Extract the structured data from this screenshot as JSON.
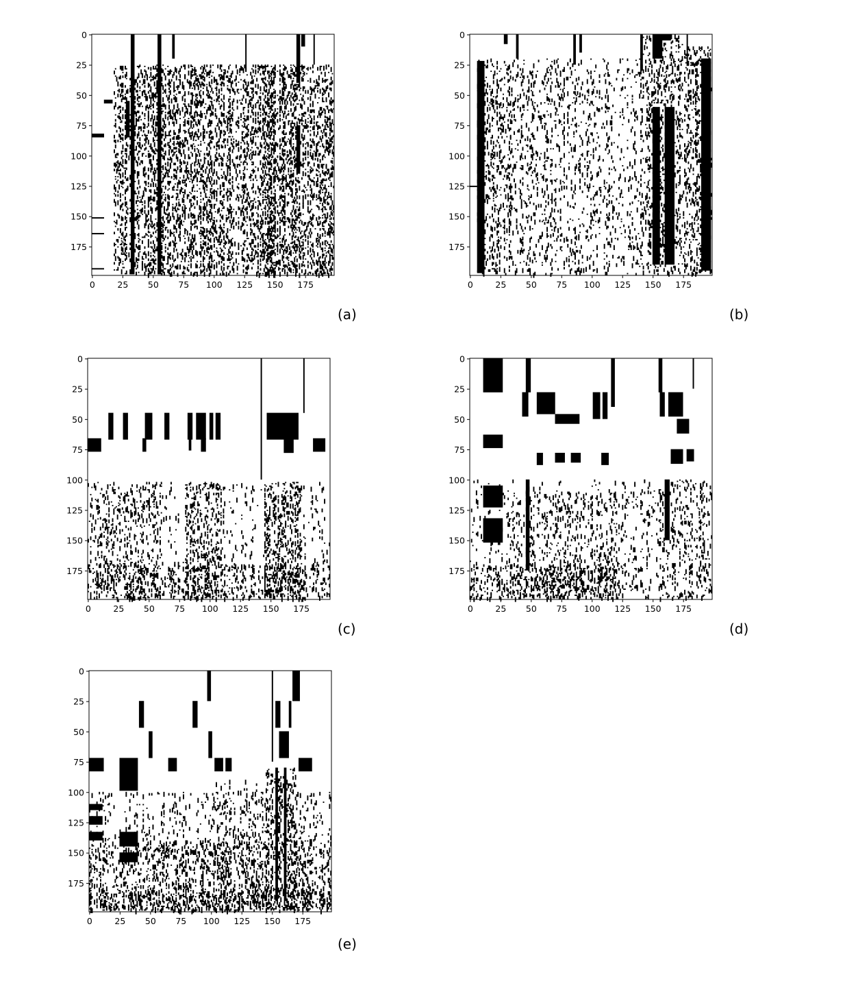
{
  "figure": {
    "panel_labels": [
      "(a)",
      "(b)",
      "(c)",
      "(d)",
      "(e)"
    ]
  },
  "chart_data": [
    {
      "type": "heatmap",
      "label": "(a)",
      "colormap": "binary",
      "colors": {
        "filled": "#000000",
        "empty": "#ffffff"
      },
      "rows": 199,
      "cols": 199,
      "xlim": [
        0,
        199
      ],
      "ylim": [
        199,
        0
      ],
      "xticks": [
        0,
        25,
        50,
        75,
        100,
        125,
        150,
        175
      ],
      "yticks": [
        0,
        25,
        50,
        75,
        100,
        125,
        150,
        175
      ],
      "grid": false,
      "seed": 11,
      "blocks": [
        [
          0,
          0,
          0,
          0
        ],
        [
          32,
          0,
          3,
          198
        ],
        [
          54,
          0,
          3,
          198
        ],
        [
          66,
          0,
          2,
          20
        ],
        [
          126,
          0,
          1,
          30
        ],
        [
          168,
          0,
          3,
          40
        ],
        [
          172,
          0,
          3,
          10
        ],
        [
          182,
          0,
          1,
          25
        ],
        [
          10,
          54,
          7,
          3
        ],
        [
          0,
          82,
          10,
          3
        ],
        [
          0,
          151,
          10,
          1
        ],
        [
          0,
          164,
          10,
          1
        ],
        [
          0,
          193,
          10,
          1
        ],
        [
          28,
          55,
          3,
          30
        ],
        [
          168,
          75,
          3,
          40
        ]
      ],
      "density": [
        [
          18,
          25,
          198,
          198,
          0.42
        ],
        [
          35,
          25,
          75,
          198,
          0.12
        ],
        [
          75,
          25,
          112,
          198,
          0.18
        ],
        [
          112,
          25,
          140,
          198,
          0.06
        ],
        [
          140,
          25,
          165,
          198,
          0.28
        ],
        [
          165,
          25,
          199,
          198,
          0.16
        ]
      ]
    },
    {
      "type": "heatmap",
      "label": "(b)",
      "colormap": "binary",
      "colors": {
        "filled": "#000000",
        "empty": "#ffffff"
      },
      "rows": 199,
      "cols": 199,
      "xlim": [
        0,
        199
      ],
      "ylim": [
        199,
        0
      ],
      "xticks": [
        0,
        25,
        50,
        75,
        100,
        125,
        150,
        175
      ],
      "yticks": [
        0,
        25,
        50,
        75,
        100,
        125,
        150,
        175
      ],
      "grid": false,
      "seed": 23,
      "blocks": [
        [
          28,
          0,
          3,
          8
        ],
        [
          38,
          0,
          2,
          20
        ],
        [
          85,
          0,
          2,
          25
        ],
        [
          90,
          0,
          2,
          15
        ],
        [
          140,
          0,
          2,
          30
        ],
        [
          150,
          0,
          8,
          20
        ],
        [
          155,
          0,
          10,
          5
        ],
        [
          178,
          0,
          1,
          25
        ],
        [
          6,
          22,
          6,
          175
        ],
        [
          0,
          125,
          6,
          1
        ],
        [
          190,
          20,
          8,
          175
        ],
        [
          150,
          60,
          6,
          130
        ],
        [
          160,
          60,
          8,
          130
        ]
      ],
      "density": [
        [
          6,
          20,
          198,
          198,
          0.1
        ],
        [
          6,
          20,
          35,
          198,
          0.3
        ],
        [
          35,
          20,
          100,
          198,
          0.12
        ],
        [
          100,
          20,
          140,
          198,
          0.08
        ],
        [
          140,
          0,
          175,
          198,
          0.3
        ],
        [
          175,
          10,
          199,
          198,
          0.32
        ]
      ]
    },
    {
      "type": "heatmap",
      "label": "(c)",
      "colormap": "binary",
      "colors": {
        "filled": "#000000",
        "empty": "#ffffff"
      },
      "rows": 199,
      "cols": 199,
      "xlim": [
        0,
        199
      ],
      "ylim": [
        199,
        0
      ],
      "xticks": [
        0,
        25,
        50,
        75,
        100,
        125,
        150,
        175
      ],
      "yticks": [
        0,
        25,
        50,
        75,
        100,
        125,
        150,
        175
      ],
      "grid": false,
      "seed": 37,
      "blocks": [
        [
          142,
          0,
          1,
          100
        ],
        [
          177,
          0,
          1,
          45
        ],
        [
          0,
          66,
          11,
          11
        ],
        [
          17,
          45,
          4,
          22
        ],
        [
          29,
          45,
          4,
          22
        ],
        [
          47,
          45,
          6,
          22
        ],
        [
          63,
          45,
          4,
          22
        ],
        [
          82,
          45,
          4,
          22
        ],
        [
          89,
          45,
          8,
          22
        ],
        [
          100,
          45,
          3,
          22
        ],
        [
          105,
          45,
          4,
          22
        ],
        [
          147,
          45,
          26,
          22
        ],
        [
          161,
          67,
          8,
          11
        ],
        [
          185,
          66,
          10,
          11
        ],
        [
          45,
          66,
          3,
          11
        ],
        [
          93,
          66,
          4,
          11
        ],
        [
          83,
          66,
          2,
          10
        ]
      ],
      "density": [
        [
          0,
          102,
          199,
          198,
          0.14
        ],
        [
          10,
          102,
          60,
          198,
          0.22
        ],
        [
          80,
          102,
          112,
          198,
          0.34
        ],
        [
          145,
          102,
          175,
          198,
          0.48
        ],
        [
          0,
          170,
          199,
          198,
          0.3
        ]
      ]
    },
    {
      "type": "heatmap",
      "label": "(d)",
      "colormap": "binary",
      "colors": {
        "filled": "#000000",
        "empty": "#ffffff"
      },
      "rows": 199,
      "cols": 199,
      "xlim": [
        0,
        199
      ],
      "ylim": [
        199,
        0
      ],
      "xticks": [
        0,
        25,
        50,
        75,
        100,
        125,
        150,
        175
      ],
      "yticks": [
        0,
        25,
        50,
        75,
        100,
        125,
        150,
        175
      ],
      "grid": false,
      "seed": 51,
      "blocks": [
        [
          11,
          0,
          16,
          28
        ],
        [
          46,
          0,
          4,
          28
        ],
        [
          116,
          0,
          3,
          40
        ],
        [
          155,
          0,
          3,
          28
        ],
        [
          183,
          0,
          1,
          25
        ],
        [
          43,
          28,
          5,
          20
        ],
        [
          55,
          28,
          15,
          18
        ],
        [
          101,
          28,
          6,
          22
        ],
        [
          109,
          28,
          4,
          22
        ],
        [
          163,
          28,
          12,
          20
        ],
        [
          156,
          28,
          4,
          20
        ],
        [
          70,
          46,
          20,
          8
        ],
        [
          11,
          63,
          16,
          11
        ],
        [
          170,
          50,
          10,
          12
        ],
        [
          55,
          78,
          5,
          10
        ],
        [
          70,
          78,
          8,
          8
        ],
        [
          83,
          78,
          8,
          8
        ],
        [
          108,
          78,
          6,
          10
        ],
        [
          165,
          75,
          10,
          12
        ],
        [
          178,
          75,
          6,
          10
        ],
        [
          11,
          105,
          16,
          18
        ],
        [
          11,
          132,
          16,
          20
        ],
        [
          46,
          100,
          3,
          75
        ],
        [
          160,
          100,
          4,
          50
        ]
      ],
      "density": [
        [
          0,
          100,
          199,
          198,
          0.1
        ],
        [
          30,
          110,
          130,
          198,
          0.2
        ],
        [
          0,
          170,
          120,
          198,
          0.35
        ],
        [
          155,
          100,
          199,
          198,
          0.28
        ],
        [
          130,
          100,
          155,
          198,
          0.06
        ]
      ]
    },
    {
      "type": "heatmap",
      "label": "(e)",
      "colormap": "binary",
      "colors": {
        "filled": "#000000",
        "empty": "#ffffff"
      },
      "rows": 199,
      "cols": 199,
      "xlim": [
        0,
        199
      ],
      "ylim": [
        199,
        0
      ],
      "xticks": [
        0,
        25,
        50,
        75,
        100,
        125,
        150,
        175
      ],
      "yticks": [
        0,
        25,
        50,
        75,
        100,
        125,
        150,
        175
      ],
      "grid": false,
      "seed": 73,
      "blocks": [
        [
          97,
          0,
          3,
          25
        ],
        [
          150,
          0,
          1,
          75
        ],
        [
          167,
          0,
          6,
          25
        ],
        [
          41,
          25,
          4,
          22
        ],
        [
          85,
          25,
          4,
          22
        ],
        [
          153,
          25,
          4,
          22
        ],
        [
          164,
          25,
          2,
          22
        ],
        [
          98,
          50,
          3,
          22
        ],
        [
          49,
          50,
          3,
          22
        ],
        [
          156,
          50,
          8,
          22
        ],
        [
          0,
          72,
          12,
          11
        ],
        [
          25,
          72,
          15,
          27
        ],
        [
          65,
          72,
          7,
          11
        ],
        [
          103,
          72,
          7,
          11
        ],
        [
          112,
          72,
          5,
          11
        ],
        [
          172,
          72,
          11,
          11
        ],
        [
          0,
          110,
          11,
          5
        ],
        [
          0,
          120,
          11,
          7
        ],
        [
          0,
          133,
          11,
          7
        ],
        [
          25,
          133,
          15,
          12
        ],
        [
          25,
          150,
          15,
          8
        ],
        [
          160,
          80,
          2,
          110
        ],
        [
          153,
          80,
          2,
          110
        ]
      ],
      "density": [
        [
          0,
          100,
          199,
          198,
          0.16
        ],
        [
          0,
          140,
          199,
          198,
          0.26
        ],
        [
          145,
          80,
          170,
          198,
          0.28
        ],
        [
          100,
          90,
          140,
          198,
          0.12
        ],
        [
          0,
          180,
          199,
          198,
          0.36
        ]
      ]
    }
  ]
}
